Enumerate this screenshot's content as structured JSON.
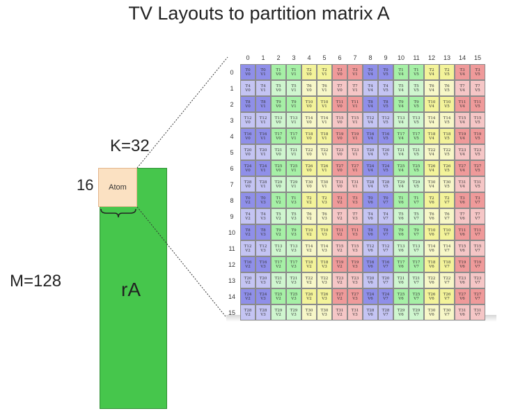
{
  "title": "TV Layouts to partition matrix A",
  "labels": {
    "k": "K=32",
    "rows": "16",
    "cols": "16",
    "m": "M=128",
    "matrix": "rA",
    "atom": "Atom"
  },
  "grid": {
    "col_headers": [
      "0",
      "1",
      "2",
      "3",
      "4",
      "5",
      "6",
      "7",
      "8",
      "9",
      "10",
      "11",
      "12",
      "13",
      "14",
      "15"
    ],
    "row_headers": [
      "0",
      "1",
      "2",
      "3",
      "4",
      "5",
      "6",
      "7",
      "8",
      "9",
      "10",
      "11",
      "12",
      "13",
      "14",
      "15"
    ],
    "colors": [
      "#8f8fe9",
      "#a6f0a6",
      "#f3f39a",
      "#ef9a9a"
    ],
    "colors_light": [
      "#c4c4f3",
      "#cff6cf",
      "#f7f7c8",
      "#f5c6c6"
    ],
    "rows": [
      [
        [
          "T0",
          "V0"
        ],
        [
          "T0",
          "V1"
        ],
        [
          "T1",
          "V0"
        ],
        [
          "T1",
          "V1"
        ],
        [
          "T2",
          "V0"
        ],
        [
          "T2",
          "V1"
        ],
        [
          "T3",
          "V0"
        ],
        [
          "T3",
          "V1"
        ],
        [
          "T0",
          "V4"
        ],
        [
          "T0",
          "V5"
        ],
        [
          "T1",
          "V4"
        ],
        [
          "T1",
          "V5"
        ],
        [
          "T2",
          "V4"
        ],
        [
          "T2",
          "V5"
        ],
        [
          "T3",
          "V4"
        ],
        [
          "T3",
          "V5"
        ]
      ],
      [
        [
          "T4",
          "V0"
        ],
        [
          "T4",
          "V1"
        ],
        [
          "T5",
          "V0"
        ],
        [
          "T5",
          "V1"
        ],
        [
          "T6",
          "V0"
        ],
        [
          "T6",
          "V1"
        ],
        [
          "T7",
          "V0"
        ],
        [
          "T7",
          "V1"
        ],
        [
          "T4",
          "V4"
        ],
        [
          "T4",
          "V5"
        ],
        [
          "T5",
          "V4"
        ],
        [
          "T5",
          "V5"
        ],
        [
          "T6",
          "V4"
        ],
        [
          "T6",
          "V5"
        ],
        [
          "T7",
          "V4"
        ],
        [
          "T7",
          "V5"
        ]
      ],
      [
        [
          "T8",
          "V0"
        ],
        [
          "T8",
          "V1"
        ],
        [
          "T9",
          "V0"
        ],
        [
          "T9",
          "V1"
        ],
        [
          "T10",
          "V0"
        ],
        [
          "T10",
          "V1"
        ],
        [
          "T11",
          "V0"
        ],
        [
          "T11",
          "V1"
        ],
        [
          "T8",
          "V4"
        ],
        [
          "T8",
          "V5"
        ],
        [
          "T9",
          "V4"
        ],
        [
          "T9",
          "V5"
        ],
        [
          "T10",
          "V4"
        ],
        [
          "T10",
          "V5"
        ],
        [
          "T11",
          "V4"
        ],
        [
          "T11",
          "V5"
        ]
      ],
      [
        [
          "T12",
          "V0"
        ],
        [
          "T12",
          "V1"
        ],
        [
          "T13",
          "V0"
        ],
        [
          "T13",
          "V1"
        ],
        [
          "T14",
          "V0"
        ],
        [
          "T14",
          "V1"
        ],
        [
          "T15",
          "V0"
        ],
        [
          "T15",
          "V1"
        ],
        [
          "T12",
          "V4"
        ],
        [
          "T12",
          "V5"
        ],
        [
          "T13",
          "V4"
        ],
        [
          "T13",
          "V5"
        ],
        [
          "T14",
          "V4"
        ],
        [
          "T14",
          "V5"
        ],
        [
          "T15",
          "V4"
        ],
        [
          "T15",
          "V5"
        ]
      ],
      [
        [
          "T16",
          "V0"
        ],
        [
          "T16",
          "V1"
        ],
        [
          "T17",
          "V0"
        ],
        [
          "T17",
          "V1"
        ],
        [
          "T18",
          "V0"
        ],
        [
          "T18",
          "V1"
        ],
        [
          "T19",
          "V0"
        ],
        [
          "T19",
          "V1"
        ],
        [
          "T16",
          "V4"
        ],
        [
          "T16",
          "V5"
        ],
        [
          "T17",
          "V4"
        ],
        [
          "T17",
          "V5"
        ],
        [
          "T18",
          "V4"
        ],
        [
          "T18",
          "V5"
        ],
        [
          "T19",
          "V4"
        ],
        [
          "T19",
          "V5"
        ]
      ],
      [
        [
          "T20",
          "V0"
        ],
        [
          "T20",
          "V1"
        ],
        [
          "T21",
          "V0"
        ],
        [
          "T21",
          "V1"
        ],
        [
          "T22",
          "V0"
        ],
        [
          "T22",
          "V1"
        ],
        [
          "T23",
          "V0"
        ],
        [
          "T23",
          "V1"
        ],
        [
          "T20",
          "V4"
        ],
        [
          "T20",
          "V5"
        ],
        [
          "T21",
          "V4"
        ],
        [
          "T21",
          "V5"
        ],
        [
          "T22",
          "V4"
        ],
        [
          "T22",
          "V5"
        ],
        [
          "T23",
          "V4"
        ],
        [
          "T23",
          "V5"
        ]
      ],
      [
        [
          "T24",
          "V0"
        ],
        [
          "T24",
          "V1"
        ],
        [
          "T25",
          "V0"
        ],
        [
          "T25",
          "V1"
        ],
        [
          "T26",
          "V0"
        ],
        [
          "T26",
          "V1"
        ],
        [
          "T27",
          "V0"
        ],
        [
          "T27",
          "V1"
        ],
        [
          "T24",
          "V4"
        ],
        [
          "T24",
          "V5"
        ],
        [
          "T25",
          "V4"
        ],
        [
          "T25",
          "V5"
        ],
        [
          "T26",
          "V4"
        ],
        [
          "T26",
          "V5"
        ],
        [
          "T27",
          "V4"
        ],
        [
          "T27",
          "V5"
        ]
      ],
      [
        [
          "T28",
          "V0"
        ],
        [
          "T28",
          "V1"
        ],
        [
          "T29",
          "V0"
        ],
        [
          "T29",
          "V1"
        ],
        [
          "T30",
          "V0"
        ],
        [
          "T30",
          "V1"
        ],
        [
          "T31",
          "V0"
        ],
        [
          "T31",
          "V1"
        ],
        [
          "T28",
          "V4"
        ],
        [
          "T28",
          "V5"
        ],
        [
          "T29",
          "V4"
        ],
        [
          "T29",
          "V5"
        ],
        [
          "T30",
          "V4"
        ],
        [
          "T30",
          "V5"
        ],
        [
          "T31",
          "V4"
        ],
        [
          "T31",
          "V5"
        ]
      ],
      [
        [
          "T0",
          "V2"
        ],
        [
          "T0",
          "V3"
        ],
        [
          "T1",
          "V2"
        ],
        [
          "T1",
          "V3"
        ],
        [
          "T2",
          "V2"
        ],
        [
          "T2",
          "V3"
        ],
        [
          "T3",
          "V2"
        ],
        [
          "T3",
          "V3"
        ],
        [
          "T0",
          "V6"
        ],
        [
          "T0",
          "V7"
        ],
        [
          "T1",
          "V6"
        ],
        [
          "T1",
          "V7"
        ],
        [
          "T2",
          "V6"
        ],
        [
          "T2",
          "V7"
        ],
        [
          "T3",
          "V6"
        ],
        [
          "T3",
          "V7"
        ]
      ],
      [
        [
          "T4",
          "V2"
        ],
        [
          "T4",
          "V3"
        ],
        [
          "T5",
          "V2"
        ],
        [
          "T5",
          "V3"
        ],
        [
          "T6",
          "V2"
        ],
        [
          "T6",
          "V3"
        ],
        [
          "T7",
          "V2"
        ],
        [
          "T7",
          "V3"
        ],
        [
          "T4",
          "V6"
        ],
        [
          "T4",
          "V7"
        ],
        [
          "T5",
          "V6"
        ],
        [
          "T5",
          "V7"
        ],
        [
          "T6",
          "V6"
        ],
        [
          "T6",
          "V7"
        ],
        [
          "T7",
          "V6"
        ],
        [
          "T7",
          "V7"
        ]
      ],
      [
        [
          "T8",
          "V2"
        ],
        [
          "T8",
          "V3"
        ],
        [
          "T9",
          "V2"
        ],
        [
          "T9",
          "V3"
        ],
        [
          "T10",
          "V2"
        ],
        [
          "T10",
          "V3"
        ],
        [
          "T11",
          "V2"
        ],
        [
          "T11",
          "V3"
        ],
        [
          "T8",
          "V6"
        ],
        [
          "T8",
          "V7"
        ],
        [
          "T9",
          "V6"
        ],
        [
          "T9",
          "V7"
        ],
        [
          "T10",
          "V6"
        ],
        [
          "T10",
          "V7"
        ],
        [
          "T11",
          "V6"
        ],
        [
          "T11",
          "V7"
        ]
      ],
      [
        [
          "T12",
          "V2"
        ],
        [
          "T12",
          "V3"
        ],
        [
          "T13",
          "V2"
        ],
        [
          "T13",
          "V3"
        ],
        [
          "T14",
          "V2"
        ],
        [
          "T14",
          "V3"
        ],
        [
          "T15",
          "V2"
        ],
        [
          "T15",
          "V3"
        ],
        [
          "T12",
          "V6"
        ],
        [
          "T12",
          "V7"
        ],
        [
          "T13",
          "V6"
        ],
        [
          "T13",
          "V7"
        ],
        [
          "T14",
          "V6"
        ],
        [
          "T14",
          "V7"
        ],
        [
          "T15",
          "V6"
        ],
        [
          "T15",
          "V7"
        ]
      ],
      [
        [
          "T16",
          "V2"
        ],
        [
          "T16",
          "V3"
        ],
        [
          "T17",
          "V2"
        ],
        [
          "T17",
          "V3"
        ],
        [
          "T18",
          "V2"
        ],
        [
          "T18",
          "V3"
        ],
        [
          "T19",
          "V2"
        ],
        [
          "T19",
          "V3"
        ],
        [
          "T16",
          "V6"
        ],
        [
          "T16",
          "V7"
        ],
        [
          "T17",
          "V6"
        ],
        [
          "T17",
          "V7"
        ],
        [
          "T18",
          "V6"
        ],
        [
          "T18",
          "V7"
        ],
        [
          "T19",
          "V6"
        ],
        [
          "T19",
          "V7"
        ]
      ],
      [
        [
          "T20",
          "V2"
        ],
        [
          "T20",
          "V3"
        ],
        [
          "T21",
          "V2"
        ],
        [
          "T21",
          "V3"
        ],
        [
          "T22",
          "V2"
        ],
        [
          "T22",
          "V3"
        ],
        [
          "T23",
          "V2"
        ],
        [
          "T23",
          "V3"
        ],
        [
          "T20",
          "V6"
        ],
        [
          "T20",
          "V7"
        ],
        [
          "T21",
          "V6"
        ],
        [
          "T21",
          "V7"
        ],
        [
          "T22",
          "V6"
        ],
        [
          "T22",
          "V7"
        ],
        [
          "T23",
          "V6"
        ],
        [
          "T23",
          "V7"
        ]
      ],
      [
        [
          "T24",
          "V2"
        ],
        [
          "T24",
          "V3"
        ],
        [
          "T25",
          "V2"
        ],
        [
          "T25",
          "V3"
        ],
        [
          "T26",
          "V2"
        ],
        [
          "T26",
          "V3"
        ],
        [
          "T27",
          "V2"
        ],
        [
          "T27",
          "V3"
        ],
        [
          "T24",
          "V6"
        ],
        [
          "T24",
          "V7"
        ],
        [
          "T25",
          "V6"
        ],
        [
          "T25",
          "V7"
        ],
        [
          "T26",
          "V6"
        ],
        [
          "T26",
          "V7"
        ],
        [
          "T27",
          "V6"
        ],
        [
          "T27",
          "V7"
        ]
      ],
      [
        [
          "T28",
          "V2"
        ],
        [
          "T28",
          "V3"
        ],
        [
          "T29",
          "V2"
        ],
        [
          "T29",
          "V3"
        ],
        [
          "T30",
          "V2"
        ],
        [
          "T30",
          "V3"
        ],
        [
          "T31",
          "V2"
        ],
        [
          "T31",
          "V3"
        ],
        [
          "T28",
          "V6"
        ],
        [
          "T28",
          "V7"
        ],
        [
          "T29",
          "V6"
        ],
        [
          "T29",
          "V7"
        ],
        [
          "T30",
          "V6"
        ],
        [
          "T30",
          "V7"
        ],
        [
          "T31",
          "V6"
        ],
        [
          "T31",
          "V7"
        ]
      ]
    ]
  }
}
